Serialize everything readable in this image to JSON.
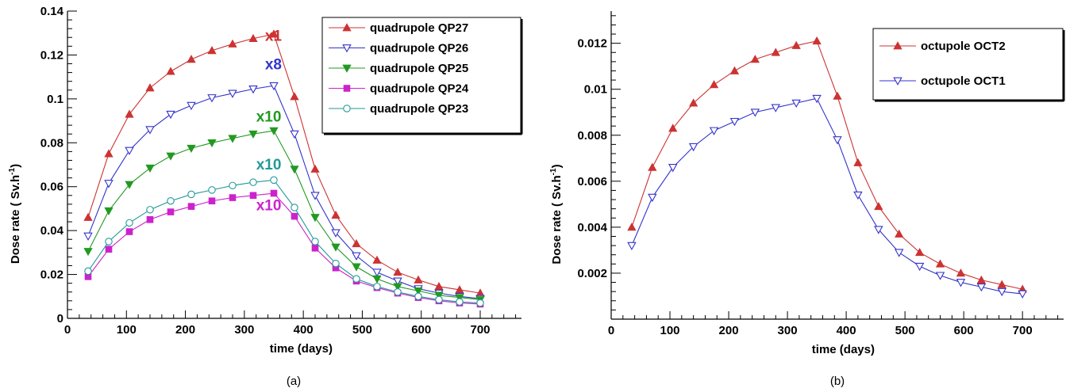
{
  "chart_data": [
    {
      "type": "line",
      "panel_label": "(a)",
      "xlabel": "time (days)",
      "ylabel": "Dose rate ( Sv.h",
      "ylabel_sup": "-1",
      "ylabel_close": ")",
      "xlim": [
        0,
        770
      ],
      "ylim": [
        0,
        0.14
      ],
      "xticks": [
        0,
        100,
        200,
        300,
        400,
        500,
        600,
        700
      ],
      "xtick_labels": [
        "0",
        "100",
        "200",
        "300",
        "400",
        "500",
        "600",
        "700"
      ],
      "yticks": [
        0,
        0.02,
        0.04,
        0.06,
        0.08,
        0.1,
        0.12,
        0.14
      ],
      "ytick_labels": [
        "0",
        "0.02",
        "0.04",
        "0.06",
        "0.08",
        "0.1",
        "0.12",
        "0.14"
      ],
      "legend_position": "top-right",
      "x": [
        35,
        70,
        105,
        140,
        175,
        210,
        245,
        280,
        315,
        350,
        385,
        420,
        455,
        490,
        525,
        560,
        595,
        630,
        665,
        700
      ],
      "series": [
        {
          "name": "quadrupole QP27",
          "color": "#cc3333",
          "marker": "triangle-up-filled",
          "values": [
            0.046,
            0.075,
            0.093,
            0.105,
            0.1125,
            0.118,
            0.122,
            0.125,
            0.1275,
            0.1295,
            0.101,
            0.068,
            0.047,
            0.034,
            0.0265,
            0.021,
            0.0175,
            0.0145,
            0.013,
            0.0115
          ]
        },
        {
          "name": "quadrupole QP26",
          "color": "#3333cc",
          "marker": "triangle-down-open",
          "values": [
            0.0375,
            0.0615,
            0.0765,
            0.086,
            0.093,
            0.097,
            0.1005,
            0.1025,
            0.1045,
            0.106,
            0.084,
            0.056,
            0.039,
            0.0285,
            0.021,
            0.017,
            0.0135,
            0.0115,
            0.01,
            0.009
          ]
        },
        {
          "name": "quadrupole QP25",
          "color": "#229922",
          "marker": "triangle-down-filled",
          "values": [
            0.0305,
            0.049,
            0.061,
            0.0685,
            0.074,
            0.0775,
            0.08,
            0.082,
            0.084,
            0.0855,
            0.068,
            0.046,
            0.0325,
            0.0235,
            0.018,
            0.0145,
            0.0125,
            0.0105,
            0.0095,
            0.0085
          ]
        },
        {
          "name": "quadrupole QP24",
          "color": "#cc22cc",
          "marker": "square-filled",
          "values": [
            0.019,
            0.0315,
            0.0395,
            0.045,
            0.0485,
            0.051,
            0.0535,
            0.055,
            0.056,
            0.057,
            0.0465,
            0.032,
            0.023,
            0.017,
            0.014,
            0.0115,
            0.0095,
            0.008,
            0.007,
            0.0065
          ]
        },
        {
          "name": "quadrupole QP23",
          "color": "#229999",
          "marker": "circle-open",
          "values": [
            0.0215,
            0.035,
            0.0435,
            0.0495,
            0.0535,
            0.0565,
            0.0585,
            0.0605,
            0.062,
            0.063,
            0.0505,
            0.035,
            0.025,
            0.018,
            0.0145,
            0.012,
            0.01,
            0.0085,
            0.0075,
            0.007
          ]
        }
      ],
      "annotations": [
        {
          "text": "x1",
          "color": "#cc3333",
          "x": 335,
          "y": 0.1265
        },
        {
          "text": "x8",
          "color": "#3333cc",
          "x": 335,
          "y": 0.1135
        },
        {
          "text": "x10",
          "color": "#229922",
          "x": 320,
          "y": 0.0897
        },
        {
          "text": "x10",
          "color": "#229999",
          "x": 320,
          "y": 0.0678
        },
        {
          "text": "x10",
          "color": "#cc22cc",
          "x": 320,
          "y": 0.0492
        }
      ]
    },
    {
      "type": "line",
      "panel_label": "(b)",
      "xlabel": "time (days)",
      "ylabel": "Dose rate ( Sv.h",
      "ylabel_sup": "-1",
      "ylabel_close": ")",
      "xlim": [
        0,
        770
      ],
      "ylim": [
        0,
        0.0134
      ],
      "xticks": [
        0,
        100,
        200,
        300,
        400,
        500,
        600,
        700
      ],
      "xtick_labels": [
        "0",
        "100",
        "200",
        "300",
        "400",
        "500",
        "600",
        "700"
      ],
      "yticks": [
        0.002,
        0.004,
        0.006,
        0.008,
        0.01,
        0.012
      ],
      "ytick_labels": [
        "0.002",
        "0.004",
        "0.006",
        "0.008",
        "0.01",
        "0.012"
      ],
      "legend_position": "top-right",
      "x": [
        35,
        70,
        105,
        140,
        175,
        210,
        245,
        280,
        315,
        350,
        385,
        420,
        455,
        490,
        525,
        560,
        595,
        630,
        665,
        700
      ],
      "series": [
        {
          "name": "octupole OCT2",
          "color": "#cc3333",
          "marker": "triangle-up-filled",
          "values": [
            0.004,
            0.0066,
            0.0083,
            0.0094,
            0.0102,
            0.0108,
            0.0113,
            0.0116,
            0.0119,
            0.0121,
            0.0097,
            0.0068,
            0.0049,
            0.0037,
            0.0029,
            0.0024,
            0.002,
            0.0017,
            0.0015,
            0.0013
          ]
        },
        {
          "name": "octupole OCT1",
          "color": "#3333cc",
          "marker": "triangle-down-open",
          "values": [
            0.0032,
            0.0053,
            0.0066,
            0.0075,
            0.0082,
            0.0086,
            0.009,
            0.0092,
            0.0094,
            0.0096,
            0.0078,
            0.0054,
            0.0039,
            0.0029,
            0.0023,
            0.0019,
            0.0016,
            0.0014,
            0.0012,
            0.0011
          ]
        }
      ],
      "annotations": []
    }
  ]
}
